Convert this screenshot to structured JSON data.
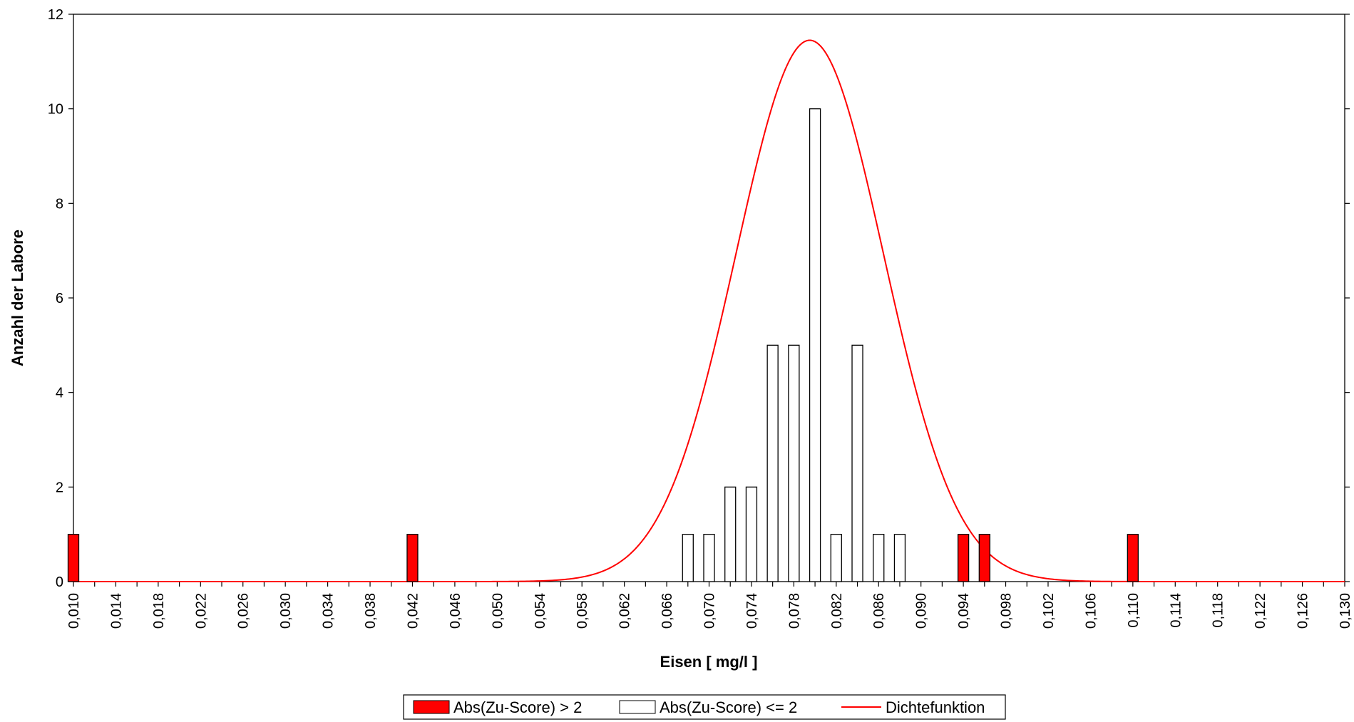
{
  "chart_data": {
    "type": "bar",
    "title": "",
    "xlabel": "Eisen [ mg/l ]",
    "ylabel": "Anzahl der Labore",
    "xlim": [
      0.01,
      0.13
    ],
    "ylim": [
      0,
      12
    ],
    "x_ticks": [
      "0,010",
      "0,014",
      "0,018",
      "0,022",
      "0,026",
      "0,030",
      "0,034",
      "0,038",
      "0,042",
      "0,046",
      "0,050",
      "0,054",
      "0,058",
      "0,062",
      "0,066",
      "0,070",
      "0,074",
      "0,078",
      "0,082",
      "0,086",
      "0,090",
      "0,094",
      "0,098",
      "0,102",
      "0,106",
      "0,110",
      "0,114",
      "0,118",
      "0,122",
      "0,126",
      "0,130"
    ],
    "y_ticks": [
      "0",
      "2",
      "4",
      "6",
      "8",
      "10",
      "12"
    ],
    "grid": false,
    "legend_position": "bottom",
    "series": [
      {
        "name": "Abs(Zu-Score) > 2",
        "kind": "bar",
        "color": "#ff0000",
        "points": [
          {
            "x": 0.01,
            "y": 1
          },
          {
            "x": 0.042,
            "y": 1
          },
          {
            "x": 0.094,
            "y": 1
          },
          {
            "x": 0.096,
            "y": 1
          },
          {
            "x": 0.11,
            "y": 1
          }
        ]
      },
      {
        "name": "Abs(Zu-Score) <= 2",
        "kind": "bar",
        "color": "#ffffff",
        "points": [
          {
            "x": 0.068,
            "y": 1
          },
          {
            "x": 0.07,
            "y": 1
          },
          {
            "x": 0.072,
            "y": 2
          },
          {
            "x": 0.074,
            "y": 2
          },
          {
            "x": 0.076,
            "y": 5
          },
          {
            "x": 0.078,
            "y": 5
          },
          {
            "x": 0.08,
            "y": 10
          },
          {
            "x": 0.082,
            "y": 1
          },
          {
            "x": 0.084,
            "y": 5
          },
          {
            "x": 0.086,
            "y": 1
          },
          {
            "x": 0.088,
            "y": 1
          }
        ]
      },
      {
        "name": "Dichtefunktion",
        "kind": "line",
        "color": "#ff0000",
        "mean": 0.0795,
        "sd": 0.00695,
        "peak": 11.45
      }
    ]
  }
}
